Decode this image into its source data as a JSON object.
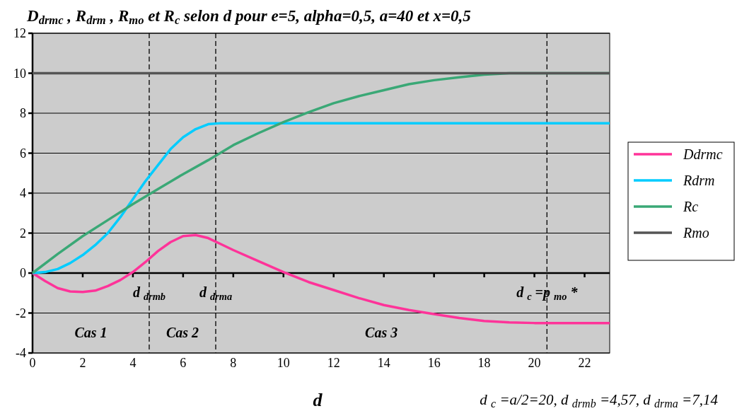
{
  "chart_data": {
    "type": "line",
    "title": "D$_{drmc}$ , R$_{drm}$ , R$_{mo}$ et R$_{c}$  selon d pour e=5, alpha=0,5, a=40 et x=0,5",
    "xlabel": "d",
    "xlim": [
      0,
      23
    ],
    "xticks": [
      0,
      2,
      4,
      6,
      8,
      10,
      12,
      14,
      16,
      18,
      20,
      22
    ],
    "ylim": [
      -4,
      12
    ],
    "yticks": [
      -4,
      -2,
      0,
      2,
      4,
      6,
      8,
      10,
      12
    ],
    "grid": "y",
    "legend": "right",
    "marker": "none",
    "line_style": "solid",
    "series": [
      {
        "name": "Ddrmc",
        "color": "#ff3399",
        "x": [
          0,
          0.5,
          1,
          1.5,
          2,
          2.5,
          3,
          3.5,
          4,
          4.5,
          5,
          5.5,
          6,
          6.5,
          7,
          7.5,
          8,
          9,
          10,
          11,
          12,
          13,
          14,
          15,
          16,
          17,
          18,
          19,
          20,
          23
        ],
        "values": [
          0,
          -0.4,
          -0.75,
          -0.92,
          -0.95,
          -0.88,
          -0.65,
          -0.35,
          0.05,
          0.55,
          1.1,
          1.55,
          1.85,
          1.9,
          1.75,
          1.45,
          1.15,
          0.6,
          0.05,
          -0.45,
          -0.85,
          -1.25,
          -1.6,
          -1.85,
          -2.05,
          -2.25,
          -2.4,
          -2.47,
          -2.5,
          -2.5
        ]
      },
      {
        "name": "Rdrm",
        "color": "#00ccff",
        "x": [
          0,
          0.5,
          1,
          1.5,
          2,
          2.5,
          3,
          3.5,
          4,
          4.5,
          5,
          5.5,
          6,
          6.5,
          7,
          7.5,
          23
        ],
        "values": [
          0,
          0.05,
          0.2,
          0.5,
          0.9,
          1.4,
          2,
          2.8,
          3.7,
          4.6,
          5.4,
          6.2,
          6.8,
          7.2,
          7.45,
          7.5,
          7.5
        ]
      },
      {
        "name": "Rc",
        "color": "#3aa876",
        "x": [
          0,
          1,
          2,
          3,
          4,
          5,
          6,
          7,
          8,
          9,
          10,
          11,
          12,
          13,
          14,
          15,
          16,
          17,
          18,
          19,
          23
        ],
        "values": [
          0,
          0.95,
          1.85,
          2.65,
          3.45,
          4.2,
          4.95,
          5.65,
          6.4,
          7,
          7.55,
          8.05,
          8.5,
          8.85,
          9.15,
          9.45,
          9.65,
          9.8,
          9.93,
          10,
          10
        ]
      },
      {
        "name": "Rmo",
        "color": "#555555",
        "x": [
          0,
          23
        ],
        "values": [
          10,
          10
        ]
      }
    ],
    "ref_lines": [
      {
        "axis": "x",
        "value": 4.65,
        "line_style": "dashed",
        "color": "#000000"
      },
      {
        "axis": "x",
        "value": 7.3,
        "line_style": "dashed",
        "color": "#000000"
      },
      {
        "axis": "x",
        "value": 20.5,
        "line_style": "dashed",
        "color": "#000000"
      }
    ],
    "annotations": [
      {
        "text": "d  $_{drmb}$",
        "x": 4.65,
        "y": -1.2
      },
      {
        "text": "d  $_{drma}$",
        "x": 7.3,
        "y": -1.2
      },
      {
        "text": "d  $_{c}$ =p  $_{mo}$ *",
        "x": 20.5,
        "y": -1.2
      },
      "Cas 1",
      "Cas 2",
      "Cas 3",
      "d $_{c}$  =a/2=20, d  $_{drmb}$  =4,57, d  $_{drma}$  =7,14"
    ]
  }
}
